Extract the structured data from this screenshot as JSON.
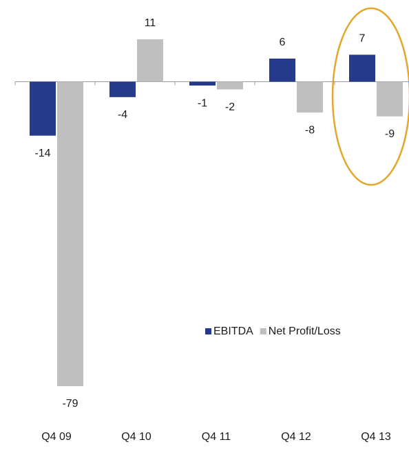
{
  "chart_data": {
    "type": "bar",
    "categories": [
      "Q4 09",
      "Q4 10",
      "Q4 11",
      "Q4 12",
      "Q4 13"
    ],
    "series": [
      {
        "name": "EBITDA",
        "color": "#263a8c",
        "values": [
          -14,
          -4,
          -1,
          6,
          7
        ]
      },
      {
        "name": "Net Profit/Loss",
        "color": "#bfbfbf",
        "values": [
          -79,
          11,
          -2,
          -8,
          -9
        ]
      }
    ],
    "legend": "lower right"
  }
}
